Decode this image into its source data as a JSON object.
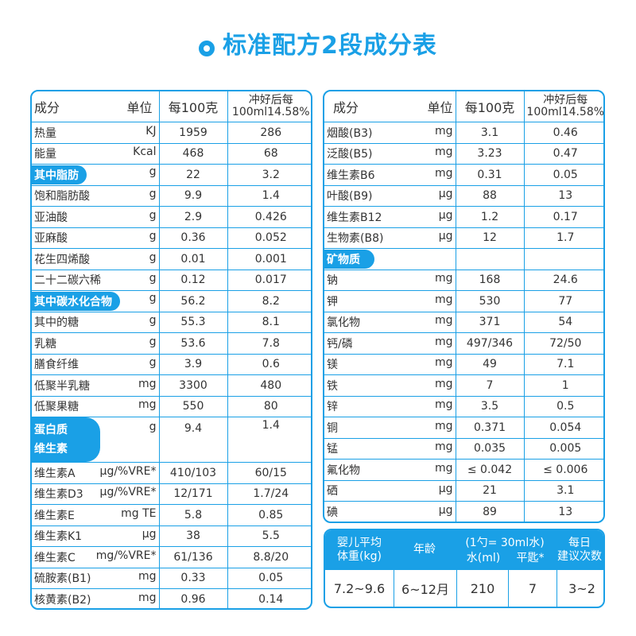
{
  "title": "标准配方2段成分表",
  "icons": {
    "title_ring": "ring-icon"
  },
  "colors": {
    "accent": "#1aa0e6"
  },
  "left_table": {
    "headers": {
      "name": "成分",
      "unit": "单位",
      "per100g": "每100克",
      "prepared_line1": "冲好后每",
      "prepared_line2": "100ml14.58%"
    },
    "rows": [
      {
        "name": "热量",
        "unit": "KJ",
        "per100g": "1959",
        "prepared": "286"
      },
      {
        "name": "能量",
        "unit": "Kcal",
        "per100g": "468",
        "prepared": "68"
      },
      {
        "name": "其中脂肪",
        "unit": "g",
        "per100g": "22",
        "prepared": "3.2",
        "highlight": true
      },
      {
        "name": "饱和脂肪酸",
        "unit": "g",
        "per100g": "9.9",
        "prepared": "1.4"
      },
      {
        "name": "亚油酸",
        "unit": "g",
        "per100g": "2.9",
        "prepared": "0.426"
      },
      {
        "name": "亚麻酸",
        "unit": "g",
        "per100g": "0.36",
        "prepared": "0.052"
      },
      {
        "name": "花生四烯酸",
        "unit": "g",
        "per100g": "0.01",
        "prepared": "0.001"
      },
      {
        "name": "二十二碳六稀",
        "unit": "g",
        "per100g": "0.12",
        "prepared": "0.017"
      },
      {
        "name": "其中碳水化合物",
        "unit": "g",
        "per100g": "56.2",
        "prepared": "8.2",
        "highlight": true
      },
      {
        "name": "其中的糖",
        "unit": "g",
        "per100g": "55.3",
        "prepared": "8.1"
      },
      {
        "name": "乳糖",
        "unit": "g",
        "per100g": "53.6",
        "prepared": "7.8"
      },
      {
        "name": "膳食纤维",
        "unit": "g",
        "per100g": "3.9",
        "prepared": "0.6"
      },
      {
        "name": "低聚半乳糖",
        "unit": "mg",
        "per100g": "3300",
        "prepared": "480"
      },
      {
        "name": "低聚果糖",
        "unit": "mg",
        "per100g": "550",
        "prepared": "80"
      }
    ],
    "protein": {
      "name": "蛋白质",
      "vitamin_label": "维生素",
      "unit": "g",
      "per100g": "9.4",
      "prepared": "1.4"
    },
    "rows2": [
      {
        "name": "维生素A",
        "unit": "μg/%VRE*",
        "per100g": "410/103",
        "prepared": "60/15"
      },
      {
        "name": "维生素D3",
        "unit": "μg/%VRE*",
        "per100g": "12/171",
        "prepared": "1.7/24"
      },
      {
        "name": "维生素E",
        "unit": "mg TE",
        "per100g": "5.8",
        "prepared": "0.85"
      },
      {
        "name": "维生素K1",
        "unit": "μg",
        "per100g": "38",
        "prepared": "5.5"
      },
      {
        "name": "维生素C",
        "unit": "mg/%VRE*",
        "per100g": "61/136",
        "prepared": "8.8/20"
      },
      {
        "name": "硫胺素(B1)",
        "unit": "mg",
        "per100g": "0.33",
        "prepared": "0.05"
      },
      {
        "name": "核黄素(B2)",
        "unit": "mg",
        "per100g": "0.96",
        "prepared": "0.14"
      }
    ]
  },
  "right_table": {
    "headers": {
      "name": "成分",
      "unit": "单位",
      "per100g": "每100克",
      "prepared_line1": "冲好后每",
      "prepared_line2": "100ml14.58%"
    },
    "rows": [
      {
        "name": "烟酸(B3)",
        "unit": "mg",
        "per100g": "3.1",
        "prepared": "0.46"
      },
      {
        "name": "泛酸(B5)",
        "unit": "mg",
        "per100g": "3.23",
        "prepared": "0.47"
      },
      {
        "name": "维生素B6",
        "unit": "mg",
        "per100g": "0.31",
        "prepared": "0.05"
      },
      {
        "name": "叶酸(B9)",
        "unit": "μg",
        "per100g": "88",
        "prepared": "13"
      },
      {
        "name": "维生素B12",
        "unit": "μg",
        "per100g": "1.2",
        "prepared": "0.17"
      },
      {
        "name": "生物素(B8)",
        "unit": "μg",
        "per100g": "12",
        "prepared": "1.7"
      }
    ],
    "minerals_label": "矿物质",
    "rows2": [
      {
        "name": "钠",
        "unit": "mg",
        "per100g": "168",
        "prepared": "24.6"
      },
      {
        "name": "钾",
        "unit": "mg",
        "per100g": "530",
        "prepared": "77"
      },
      {
        "name": "氯化物",
        "unit": "mg",
        "per100g": "371",
        "prepared": "54"
      },
      {
        "name": "钙/磷",
        "unit": "mg",
        "per100g": "497/346",
        "prepared": "72/50"
      },
      {
        "name": "镁",
        "unit": "mg",
        "per100g": "49",
        "prepared": "7.1"
      },
      {
        "name": "铁",
        "unit": "mg",
        "per100g": "7",
        "prepared": "1"
      },
      {
        "name": "锌",
        "unit": "mg",
        "per100g": "3.5",
        "prepared": "0.5"
      },
      {
        "name": "铜",
        "unit": "mg",
        "per100g": "0.371",
        "prepared": "0.054"
      },
      {
        "name": "锰",
        "unit": "mg",
        "per100g": "0.035",
        "prepared": "0.005"
      },
      {
        "name": "氟化物",
        "unit": "mg",
        "per100g": "≤ 0.042",
        "prepared": "≤ 0.006"
      },
      {
        "name": "硒",
        "unit": "μg",
        "per100g": "21",
        "prepared": "3.1"
      },
      {
        "name": "碘",
        "unit": "μg",
        "per100g": "89",
        "prepared": "13"
      }
    ]
  },
  "feeding": {
    "headers": {
      "weight_line1": "婴儿平均",
      "weight_line2": "体重(kg)",
      "age": "年龄",
      "scoop_line1": "(1勺= 30ml水)",
      "water": "水(ml)",
      "scoop": "平匙*",
      "times_line1": "每日",
      "times_line2": "建议次数"
    },
    "values": {
      "weight": "7.2~9.6",
      "age": "6~12月",
      "water": "210",
      "scoop": "7",
      "times": "3~2"
    }
  }
}
